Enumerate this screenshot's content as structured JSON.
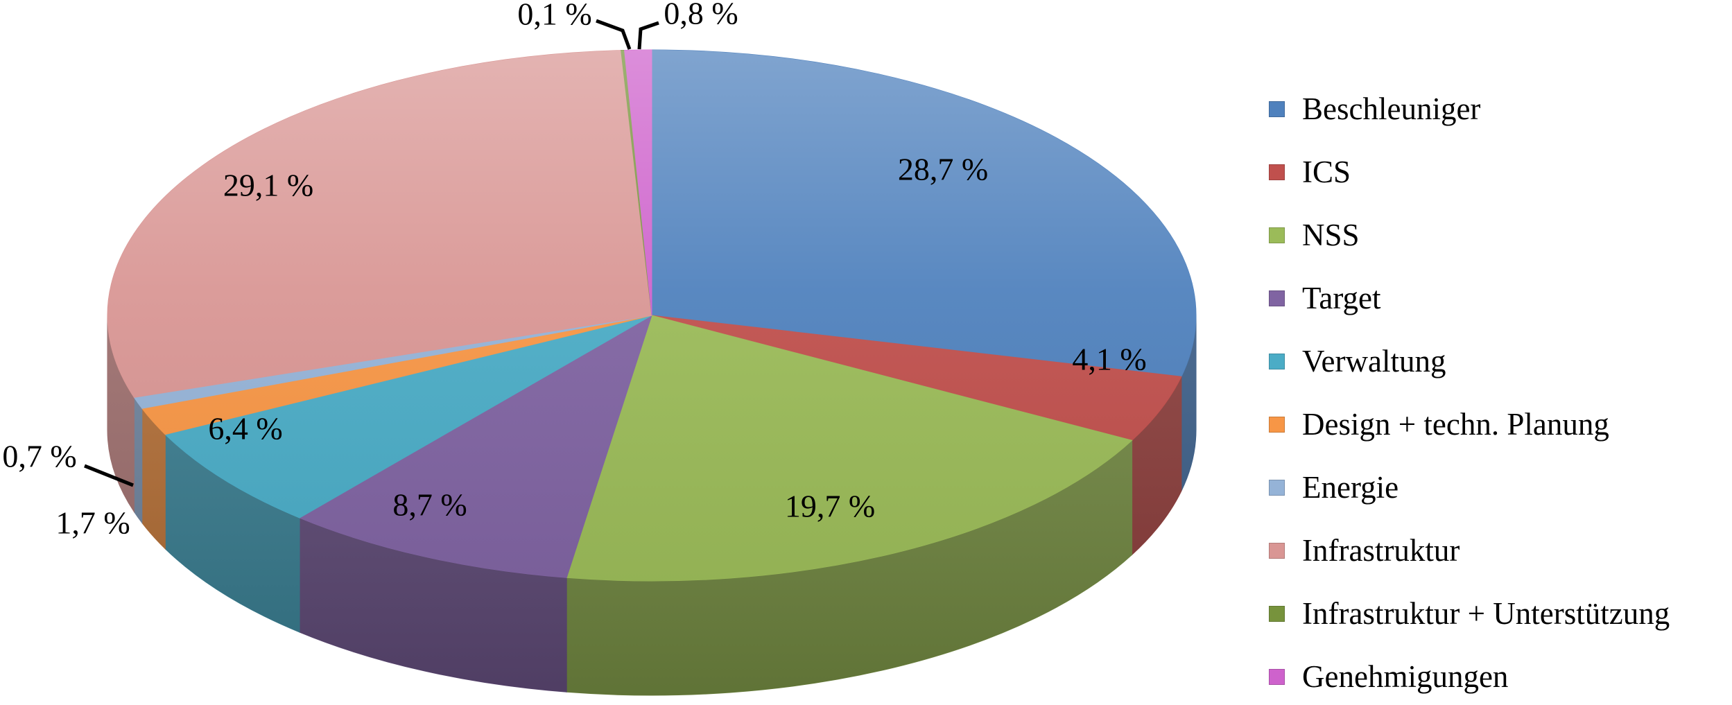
{
  "figure": {
    "background": "#ffffff",
    "title": ""
  },
  "chart_data": {
    "type": "pie",
    "projection": "3d",
    "title": "",
    "unit": "%",
    "number_format": "comma decimal with space before %",
    "start_angle_deg": 0,
    "direction": "clockwise",
    "legend_position": "right",
    "grid": false,
    "slices": [
      {
        "label": "Beschleuniger",
        "value": 28.7,
        "value_label": "28,7 %",
        "color": "#4F81BD"
      },
      {
        "label": "ICS",
        "value": 4.1,
        "value_label": "4,1 %",
        "color": "#C0504D"
      },
      {
        "label": "NSS",
        "value": 19.7,
        "value_label": "19,7 %",
        "color": "#9BBB59"
      },
      {
        "label": "Target",
        "value": 8.7,
        "value_label": "8,7 %",
        "color": "#8064A2"
      },
      {
        "label": "Verwaltung",
        "value": 6.4,
        "value_label": "6,4 %",
        "color": "#4BACC6"
      },
      {
        "label": "Design + techn. Planung",
        "value": 1.7,
        "value_label": "1,7 %",
        "color": "#F79646"
      },
      {
        "label": "Energie",
        "value": 0.7,
        "value_label": "0,7 %",
        "color": "#95B3D7"
      },
      {
        "label": "Infrastruktur",
        "value": 29.1,
        "value_label": "29,1 %",
        "color": "#D99694"
      },
      {
        "label": "Infrastruktur + Unterstützung",
        "value": 0.1,
        "value_label": "0,1 %",
        "color": "#77933C"
      },
      {
        "label": "Genehmigungen",
        "value": 0.8,
        "value_label": "0,8 %",
        "color": "#CE62CC"
      }
    ]
  }
}
